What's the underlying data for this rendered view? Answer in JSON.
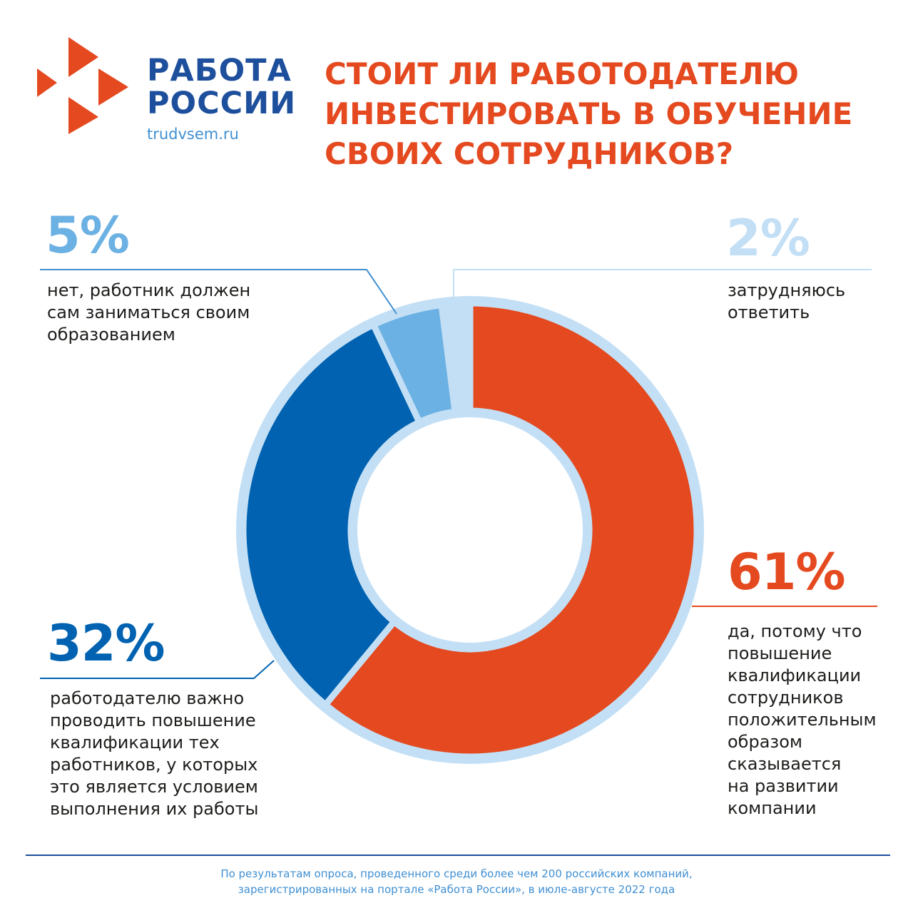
{
  "brand": {
    "line1": "РАБОТА",
    "line2": "РОССИИ",
    "url": "trudvsem.ru",
    "logo_color": "#e4491f",
    "text_color": "#1d4f9c"
  },
  "title": {
    "line1": "СТОИТ ЛИ РАБОТОДАТЕЛЮ",
    "line2": "ИНВЕСТИРОВАТЬ В ОБУЧЕНИЕ",
    "line3": "СВОИХ СОТРУДНИКОВ?"
  },
  "labels": {
    "yes": {
      "pct": "61%",
      "lines": [
        "да, потому что",
        "повышение",
        "квалификации",
        "сотрудников",
        "положительным",
        "образом",
        "сказывается",
        "на развитии",
        "компании"
      ]
    },
    "important": {
      "pct": "32%",
      "lines": [
        "работодателю важно",
        "проводить повышение",
        "квалификации тех",
        "работников, у которых",
        "это является условием",
        "выполнения их работы"
      ]
    },
    "no": {
      "pct": "5%",
      "lines": [
        "нет, работник должен",
        "сам заниматься своим",
        "образованием"
      ]
    },
    "unsure": {
      "pct": "2%",
      "lines": [
        "затрудняюсь",
        "ответить"
      ]
    }
  },
  "chart_data": {
    "type": "pie",
    "variant": "donut",
    "unit": "%",
    "slices": [
      {
        "label": "да, потому что повышение квалификации сотрудников положительным образом сказывается на развитии компании",
        "value": 61,
        "color": "#e4491f"
      },
      {
        "label": "работодателю важно проводить повышение квалификации тех работников, у которых это является условием выполнения их работы",
        "value": 32,
        "color": "#0062b0"
      },
      {
        "label": "нет, работник должен сам заниматься своим образованием",
        "value": 5,
        "color": "#6cb1e3"
      },
      {
        "label": "затрудняюсь ответить",
        "value": 2,
        "color": "#c3dff5"
      }
    ],
    "ring_color": "#c3dff5"
  },
  "footer": {
    "line1": "По результатам опроса, проведенного среди более чем 200  российских компаний,",
    "line2": "зарегистрированных на портале «Работа России», в июле-августе 2022 года"
  }
}
